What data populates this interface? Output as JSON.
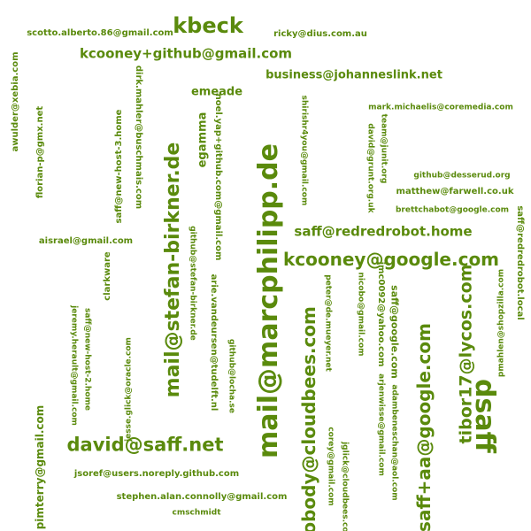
{
  "cloud": {
    "color": "#5a8a0c",
    "words": [
      {
        "id": "w01",
        "text": "kbeck"
      },
      {
        "id": "w02",
        "text": "scotto.alberto.86@gmail.com"
      },
      {
        "id": "w03",
        "text": "ricky@dius.com.au"
      },
      {
        "id": "w04",
        "text": "kcooney+github@gmail.com"
      },
      {
        "id": "w05",
        "text": "business@johanneslink.net"
      },
      {
        "id": "w06",
        "text": "emeade"
      },
      {
        "id": "w07",
        "text": "awulder@xebia.com"
      },
      {
        "id": "w08",
        "text": "florian-p@gmx.net"
      },
      {
        "id": "w09",
        "text": "saff@new-host-3.home"
      },
      {
        "id": "w10",
        "text": "dirk.mahler@buschmais.com"
      },
      {
        "id": "w11",
        "text": "mail@stefan-birkner.de"
      },
      {
        "id": "w12",
        "text": "egamma"
      },
      {
        "id": "w13",
        "text": "noel.yap+github.com@gmail.com"
      },
      {
        "id": "w14",
        "text": "mail@marcphilipp.de"
      },
      {
        "id": "w15",
        "text": "shirishr4you@gmail.com"
      },
      {
        "id": "w16",
        "text": "mark.michaelis@coremedia.com"
      },
      {
        "id": "w17",
        "text": "david@grunt.org.uk"
      },
      {
        "id": "w18",
        "text": "team@junit.org"
      },
      {
        "id": "w19",
        "text": "github@desserud.org"
      },
      {
        "id": "w20",
        "text": "matthew@farwell.co.uk"
      },
      {
        "id": "w21",
        "text": "brettchabot@google.com"
      },
      {
        "id": "w22",
        "text": "saff@redredrobot.local"
      },
      {
        "id": "w23",
        "text": "saff@redredrobot.home"
      },
      {
        "id": "w24",
        "text": "kcooney@google.com"
      },
      {
        "id": "w25",
        "text": "aisrael@gmail.com"
      },
      {
        "id": "w26",
        "text": "clarkware"
      },
      {
        "id": "w27",
        "text": "github@stefan-birkner.de"
      },
      {
        "id": "w28",
        "text": "arie.vandeursen@tudelft.nl"
      },
      {
        "id": "w29",
        "text": "github@locha.se"
      },
      {
        "id": "w30",
        "text": "jeremy.herault@gmail.com"
      },
      {
        "id": "w31",
        "text": "saff@new-host-2.home"
      },
      {
        "id": "w32",
        "text": "jesse.glick@oracle.com"
      },
      {
        "id": "w33",
        "text": "nobody@cloudbees.com"
      },
      {
        "id": "w34",
        "text": "peter@de.mueyer.net"
      },
      {
        "id": "w35",
        "text": "nicobo@gmail.com"
      },
      {
        "id": "w36",
        "text": "jmc0092@yahoo.com"
      },
      {
        "id": "w37",
        "text": "saff@google.com"
      },
      {
        "id": "w38",
        "text": "saff+aa@google.com"
      },
      {
        "id": "w39",
        "text": "tibor17@lycos.com"
      },
      {
        "id": "w40",
        "text": "dsaff"
      },
      {
        "id": "w41",
        "text": "pmahlen@shopzilla.com"
      },
      {
        "id": "w42",
        "text": "arjenwisse@gmail.com"
      },
      {
        "id": "w43",
        "text": "adambeneschan@aol.com"
      },
      {
        "id": "w44",
        "text": "pimterry@gmail.com"
      },
      {
        "id": "w45",
        "text": "david@saff.net"
      },
      {
        "id": "w46",
        "text": "jsoref@users.noreply.github.com"
      },
      {
        "id": "w47",
        "text": "stephen.alan.connolly@gmail.com"
      },
      {
        "id": "w48",
        "text": "cmschmidt"
      },
      {
        "id": "w49",
        "text": "corey@gmail.com"
      },
      {
        "id": "w50",
        "text": "jglick@cloudbees.com"
      }
    ]
  }
}
